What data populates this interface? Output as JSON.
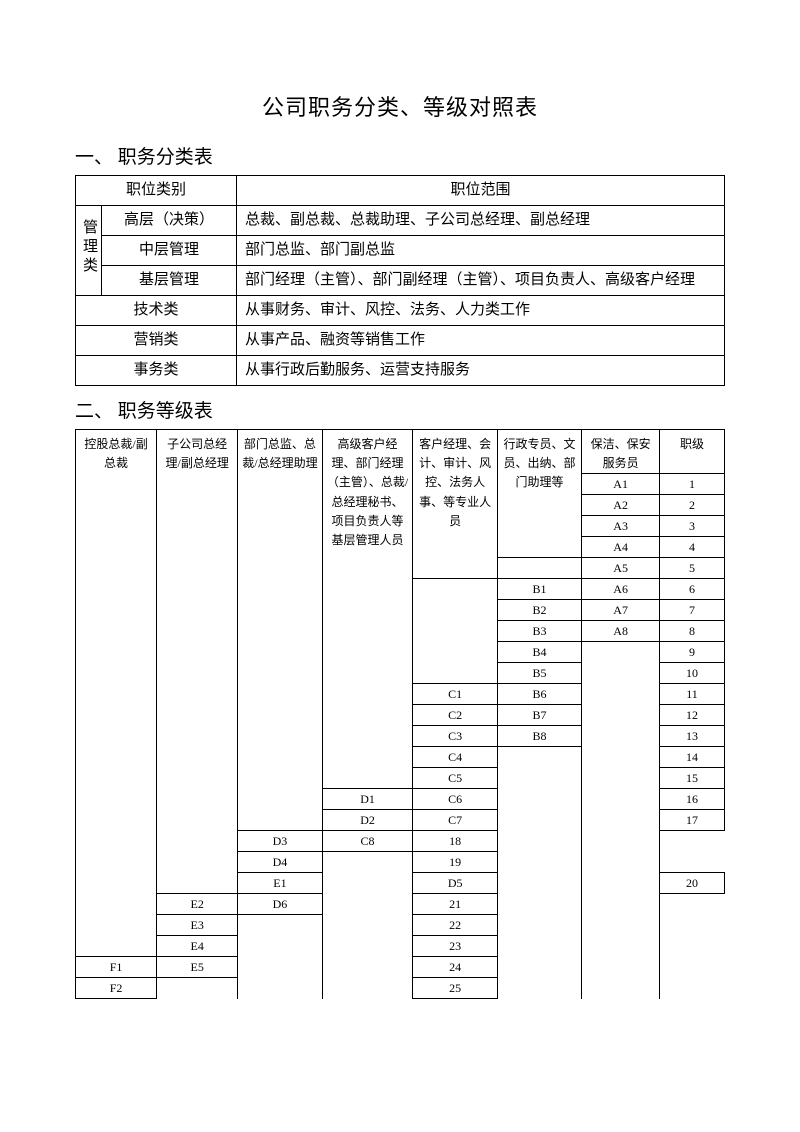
{
  "doc_title": "公司职务分类、等级对照表",
  "section1": {
    "title": "一、 职务分类表",
    "headers": {
      "category": "职位类别",
      "scope": "职位范围"
    },
    "mgmt_label": "管理类",
    "rows": [
      {
        "sub": "高层（决策）",
        "scope": "总裁、副总裁、总裁助理、子公司总经理、副总经理"
      },
      {
        "sub": "中层管理",
        "scope": "部门总监、部门副总监"
      },
      {
        "sub": "基层管理",
        "scope": "部门经理（主管）、部门副经理（主管）、项目负责人、高级客户经理"
      }
    ],
    "flat_rows": [
      {
        "cat": "技术类",
        "scope": "从事财务、审计、风控、法务、人力类工作"
      },
      {
        "cat": "营销类",
        "scope": "从事产品、融资等销售工作"
      },
      {
        "cat": "事务类",
        "scope": "从事行政后勤服务、运营支持服务"
      }
    ]
  },
  "section2": {
    "title": "二、 职务等级表",
    "headers": [
      "控股总裁/副总裁",
      "子公司总经理/副总经理",
      "部门总监、总裁/总经理助理",
      "高级客户经理、部门经理（主管）、总裁/总经理秘书、项目负责人等基层管理人员",
      "客户经理、会计、审计、风控、法务人事、等专业人员",
      "行政专员、文员、出纳、部门助理等",
      "保洁、保安服务员",
      "职级"
    ],
    "a": [
      "A1",
      "A2",
      "A3",
      "A4",
      "A5",
      "A6",
      "A7",
      "A8"
    ],
    "b": [
      "B1",
      "B2",
      "B3",
      "B4",
      "B5",
      "B6",
      "B7",
      "B8"
    ],
    "c": [
      "C1",
      "C2",
      "C3",
      "C4",
      "C5",
      "C6",
      "C7",
      "C8"
    ],
    "d": [
      "D1",
      "D2",
      "D3",
      "D4",
      "D5",
      "D6"
    ],
    "e": [
      "E1",
      "E2",
      "E3",
      "E4",
      "E5"
    ],
    "f": [
      "F1",
      "F2"
    ],
    "ranks": [
      "1",
      "2",
      "3",
      "4",
      "5",
      "6",
      "7",
      "8",
      "9",
      "10",
      "11",
      "12",
      "13",
      "14",
      "15",
      "16",
      "17",
      "18",
      "19",
      "20",
      "21",
      "22",
      "23",
      "24",
      "25"
    ]
  },
  "style": {
    "bg": "#ffffff",
    "text": "#000000",
    "border": "#000000",
    "title_fontsize": 22,
    "section_fontsize": 19,
    "table1_fontsize": 15,
    "table2_fontsize": 12
  }
}
